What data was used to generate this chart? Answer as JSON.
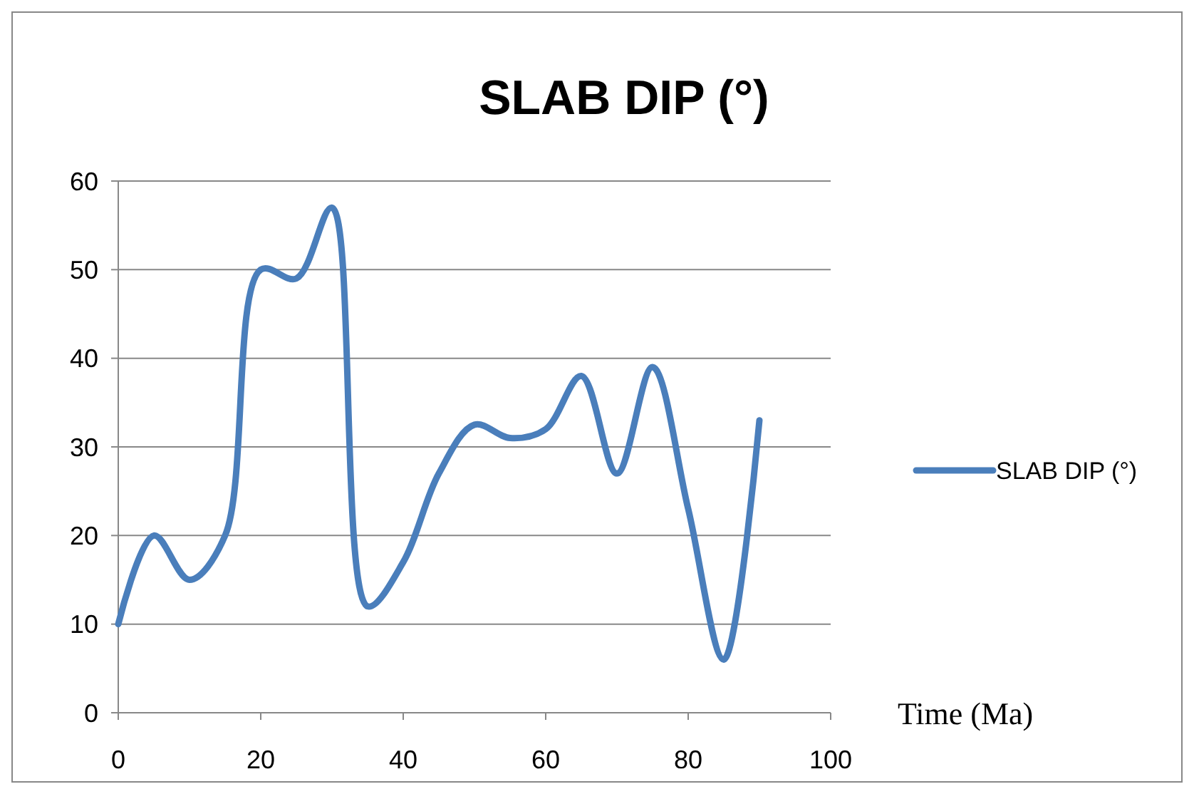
{
  "chart_data": {
    "type": "line",
    "title": "SLAB DIP (°)",
    "xlabel": "Time (Ma)",
    "x": [
      0,
      5,
      10,
      15,
      20,
      25,
      30,
      35,
      40,
      45,
      50,
      55,
      60,
      65,
      70,
      75,
      80,
      85,
      90
    ],
    "series": [
      {
        "name": "SLAB DIP (°)",
        "color": "#4a7ebb",
        "values": [
          10,
          20,
          15,
          20,
          50,
          49,
          57,
          12,
          17,
          27,
          32.5,
          31,
          32,
          38,
          27,
          39,
          23,
          6,
          33
        ]
      }
    ],
    "xlim": [
      0,
      100
    ],
    "xticks": [
      0,
      20,
      40,
      60,
      80,
      100
    ],
    "ylim": [
      0,
      60
    ],
    "yticks": [
      0,
      10,
      20,
      30,
      40,
      50,
      60
    ],
    "grid": "y",
    "legend": "right",
    "marker": "none",
    "line_style": "solid"
  }
}
